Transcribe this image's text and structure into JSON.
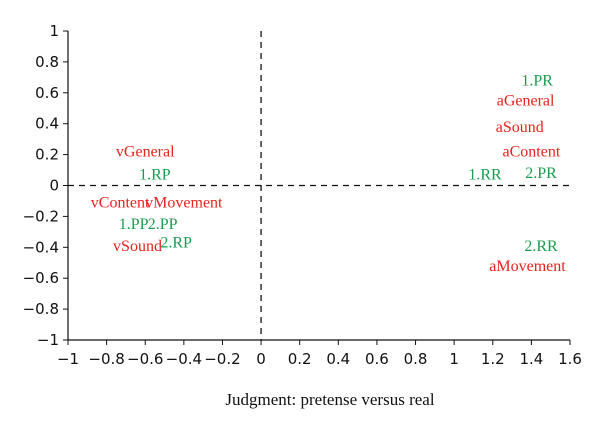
{
  "chart_data": {
    "type": "scatter",
    "title": "",
    "xlabel": "Judgment: pretense versus real",
    "ylabel": "",
    "xlim": [
      -1,
      1.6
    ],
    "ylim": [
      -1,
      1
    ],
    "xticks": [
      -1,
      -0.8,
      -0.6,
      -0.4,
      -0.2,
      0,
      0.2,
      0.4,
      0.6,
      0.8,
      1,
      1.2,
      1.4,
      1.6
    ],
    "yticks": [
      1,
      0.8,
      0.6,
      0.4,
      0.2,
      0,
      -0.2,
      -0.4,
      -0.6,
      -0.8,
      -1
    ],
    "xtick_labels": [
      "−1",
      "−0.8",
      "−0.6",
      "−0.4",
      "−0.2",
      "0",
      "0.2",
      "0.4",
      "0.6",
      "0.8",
      "1",
      "1.2",
      "1.4",
      "1.6"
    ],
    "ytick_labels": [
      "1",
      "0.8",
      "0.6",
      "0.4",
      "0.2",
      "0",
      "−0.2",
      "−0.4",
      "−0.6",
      "−0.8",
      "−1"
    ],
    "reference_lines": {
      "x": 0,
      "y": 0,
      "style": "dashed"
    },
    "grid": false,
    "colors": {
      "red_group": "#e8221e",
      "green_group": "#1a9c50",
      "axis": "#111111"
    },
    "points": [
      {
        "label": "vGeneral",
        "x": -0.6,
        "y": 0.22,
        "color": "red"
      },
      {
        "label": "1.RP",
        "x": -0.55,
        "y": 0.07,
        "color": "green"
      },
      {
        "label": "vContent",
        "x": -0.73,
        "y": -0.11,
        "color": "red"
      },
      {
        "label": "vMovement",
        "x": -0.4,
        "y": -0.11,
        "color": "red"
      },
      {
        "label": "1.PP",
        "x": -0.66,
        "y": -0.25,
        "color": "green"
      },
      {
        "label": "2.PP",
        "x": -0.51,
        "y": -0.25,
        "color": "green"
      },
      {
        "label": "vSound",
        "x": -0.64,
        "y": -0.39,
        "color": "red"
      },
      {
        "label": "2.RP",
        "x": -0.44,
        "y": -0.37,
        "color": "green"
      },
      {
        "label": "1.PR",
        "x": 1.43,
        "y": 0.68,
        "color": "green"
      },
      {
        "label": "aGeneral",
        "x": 1.37,
        "y": 0.55,
        "color": "red"
      },
      {
        "label": "aSound",
        "x": 1.34,
        "y": 0.38,
        "color": "red"
      },
      {
        "label": "aContent",
        "x": 1.4,
        "y": 0.22,
        "color": "red"
      },
      {
        "label": "1.RR",
        "x": 1.16,
        "y": 0.07,
        "color": "green"
      },
      {
        "label": "2.PR",
        "x": 1.45,
        "y": 0.08,
        "color": "green"
      },
      {
        "label": "2.RR",
        "x": 1.45,
        "y": -0.39,
        "color": "green"
      },
      {
        "label": "aMovement",
        "x": 1.38,
        "y": -0.52,
        "color": "red"
      }
    ]
  }
}
